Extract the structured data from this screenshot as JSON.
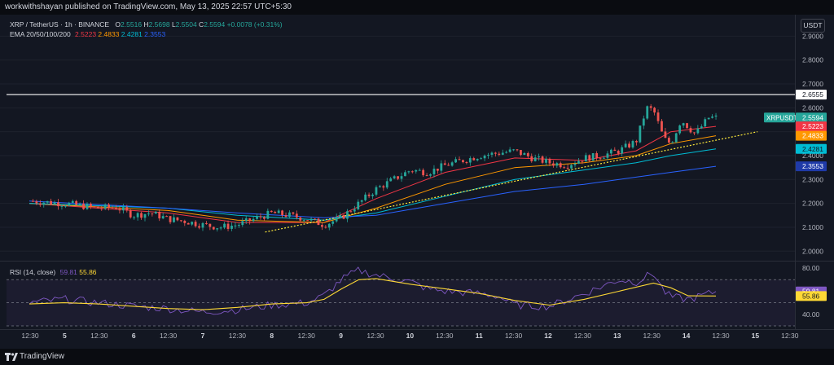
{
  "header": {
    "publish_text": "workwithshayan published on TradingView.com, May 13, 2025 22:57 UTC+5:30"
  },
  "legend": {
    "symbol": "XRP / TetherUS · 1h · BINANCE",
    "ohlc": [
      {
        "k": "O",
        "v": "2.5516"
      },
      {
        "k": "H",
        "v": "2.5698"
      },
      {
        "k": "L",
        "v": "2.5504"
      },
      {
        "k": "C",
        "v": "2.5594"
      }
    ],
    "change": "+0.0078 (+0.31%)",
    "ema_title": "EMA 20/50/100/200",
    "ema_values": [
      "2.5223",
      "2.4833",
      "2.4281",
      "2.3553"
    ],
    "rsi_title": "RSI (14, close)",
    "rsi_values": [
      "59.81",
      "55.86"
    ]
  },
  "currency_button": "USDT",
  "footer": {
    "brand": "TradingView"
  },
  "colors": {
    "background": "#131722",
    "up": "#26a69a",
    "down": "#ef5350",
    "ema20": "#f23645",
    "ema50": "#ff9800",
    "ema100": "#00bcd4",
    "ema200": "#2962ff",
    "rsi": "#7e57c2",
    "rsi_ma": "#fdd835",
    "horizontal_line": "#ffffff",
    "trendline": "#ffeb3b"
  },
  "chart_data": [
    {
      "type": "candlestick",
      "title": "XRP / TetherUS · 1h · BINANCE",
      "y_ticks": [
        "2.9000",
        "2.8000",
        "2.7000",
        "2.6000",
        "2.5000",
        "2.4000",
        "2.3000",
        "2.2000",
        "2.1000",
        "2.0000"
      ],
      "ylim": [
        1.96,
        2.99
      ],
      "x_ticks": [
        "12:30",
        "5",
        "12:30",
        "6",
        "12:30",
        "7",
        "12:30",
        "8",
        "12:30",
        "9",
        "12:30",
        "10",
        "12:30",
        "11",
        "12:30",
        "12",
        "12:30",
        "13",
        "12:30",
        "14",
        "12:30",
        "15",
        "12:30"
      ],
      "xlim": [
        0,
        22.5
      ],
      "close_series": [
        [
          0,
          2.21
        ],
        [
          0.5,
          2.205
        ],
        [
          1,
          2.2
        ],
        [
          1.5,
          2.19
        ],
        [
          2,
          2.18
        ],
        [
          2.5,
          2.185
        ],
        [
          3,
          2.15
        ],
        [
          3.5,
          2.16
        ],
        [
          4,
          2.135
        ],
        [
          4.5,
          2.125
        ],
        [
          5,
          2.11
        ],
        [
          5.5,
          2.1
        ],
        [
          6,
          2.11
        ],
        [
          6.5,
          2.135
        ],
        [
          7,
          2.16
        ],
        [
          7.5,
          2.15
        ],
        [
          8,
          2.135
        ],
        [
          8.5,
          2.11
        ],
        [
          9,
          2.14
        ],
        [
          9.5,
          2.2
        ],
        [
          10,
          2.26
        ],
        [
          10.5,
          2.3
        ],
        [
          11,
          2.34
        ],
        [
          11.5,
          2.33
        ],
        [
          12,
          2.36
        ],
        [
          12.5,
          2.38
        ],
        [
          13,
          2.4
        ],
        [
          13.5,
          2.41
        ],
        [
          14,
          2.42
        ],
        [
          14.5,
          2.39
        ],
        [
          15,
          2.37
        ],
        [
          15.5,
          2.36
        ],
        [
          16,
          2.39
        ],
        [
          16.5,
          2.4
        ],
        [
          17,
          2.42
        ],
        [
          17.5,
          2.46
        ],
        [
          17.8,
          2.6
        ],
        [
          18,
          2.59
        ],
        [
          18.3,
          2.47
        ],
        [
          18.5,
          2.45
        ],
        [
          18.8,
          2.55
        ],
        [
          19.2,
          2.49
        ],
        [
          19.6,
          2.56
        ],
        [
          19.8,
          2.559
        ]
      ],
      "current_price": "2.5594",
      "current_price_label": "XRPUSDT",
      "horizontal_level": "2.6555",
      "ema_labels": [
        "2.5223",
        "2.4833",
        "2.4281",
        "2.3553"
      ],
      "ema_series": [
        {
          "name": "EMA 20",
          "points": [
            [
              0,
              2.2
            ],
            [
              4,
              2.16
            ],
            [
              6,
              2.12
            ],
            [
              8.5,
              2.12
            ],
            [
              10,
              2.22
            ],
            [
              12,
              2.33
            ],
            [
              14,
              2.39
            ],
            [
              16,
              2.38
            ],
            [
              17.5,
              2.42
            ],
            [
              18.5,
              2.5
            ],
            [
              19.8,
              2.5223
            ]
          ]
        },
        {
          "name": "EMA 50",
          "points": [
            [
              0,
              2.2
            ],
            [
              4,
              2.17
            ],
            [
              6,
              2.13
            ],
            [
              8.5,
              2.12
            ],
            [
              10,
              2.18
            ],
            [
              12,
              2.28
            ],
            [
              14,
              2.35
            ],
            [
              16,
              2.37
            ],
            [
              17.5,
              2.4
            ],
            [
              18.5,
              2.45
            ],
            [
              19.8,
              2.4833
            ]
          ]
        },
        {
          "name": "EMA 100",
          "points": [
            [
              0,
              2.2
            ],
            [
              4,
              2.18
            ],
            [
              6,
              2.15
            ],
            [
              8.5,
              2.13
            ],
            [
              10,
              2.16
            ],
            [
              12,
              2.23
            ],
            [
              14,
              2.3
            ],
            [
              16,
              2.34
            ],
            [
              17.5,
              2.37
            ],
            [
              18.5,
              2.4
            ],
            [
              19.8,
              2.4281
            ]
          ]
        },
        {
          "name": "EMA 200",
          "points": [
            [
              0,
              2.21
            ],
            [
              4,
              2.18
            ],
            [
              6,
              2.16
            ],
            [
              8.5,
              2.14
            ],
            [
              10,
              2.15
            ],
            [
              12,
              2.2
            ],
            [
              14,
              2.25
            ],
            [
              16,
              2.28
            ],
            [
              17.5,
              2.31
            ],
            [
              18.5,
              2.33
            ],
            [
              19.8,
              2.3553
            ]
          ]
        }
      ],
      "trendline": [
        [
          6.8,
          2.08
        ],
        [
          21,
          2.5
        ]
      ]
    },
    {
      "type": "line",
      "title": "RSI (14, close)",
      "y_ticks": [
        "80.00",
        "40.00"
      ],
      "ylim": [
        30,
        85
      ],
      "bands": [
        70,
        50,
        30
      ],
      "series": [
        {
          "name": "RSI",
          "points": [
            [
              0,
              50
            ],
            [
              1,
              53
            ],
            [
              2,
              50
            ],
            [
              3,
              47
            ],
            [
              4,
              45
            ],
            [
              5,
              42
            ],
            [
              6,
              44
            ],
            [
              7,
              48
            ],
            [
              8,
              50
            ],
            [
              8.5,
              56
            ],
            [
              9,
              70
            ],
            [
              9.5,
              78
            ],
            [
              10,
              74
            ],
            [
              11,
              68
            ],
            [
              11.5,
              62
            ],
            [
              12,
              60
            ],
            [
              13,
              58
            ],
            [
              13.5,
              56
            ],
            [
              14,
              48
            ],
            [
              15,
              47
            ],
            [
              16,
              58
            ],
            [
              17,
              70
            ],
            [
              17.5,
              68
            ],
            [
              18,
              76
            ],
            [
              18.3,
              60
            ],
            [
              18.5,
              55
            ],
            [
              19,
              53
            ],
            [
              19.5,
              57
            ],
            [
              19.8,
              59.81
            ]
          ]
        },
        {
          "name": "RSI MA",
          "points": [
            [
              0,
              49
            ],
            [
              1,
              50
            ],
            [
              2,
              49
            ],
            [
              3,
              47
            ],
            [
              4,
              45
            ],
            [
              5,
              44
            ],
            [
              6,
              46
            ],
            [
              7,
              49
            ],
            [
              8,
              50
            ],
            [
              8.5,
              53
            ],
            [
              9,
              62
            ],
            [
              9.5,
              70
            ],
            [
              10,
              71
            ],
            [
              11,
              66
            ],
            [
              12,
              62
            ],
            [
              13,
              58
            ],
            [
              14,
              52
            ],
            [
              15,
              48
            ],
            [
              16,
              53
            ],
            [
              17,
              60
            ],
            [
              18,
              67
            ],
            [
              18.5,
              63
            ],
            [
              19,
              56
            ],
            [
              19.8,
              55.86
            ]
          ]
        }
      ]
    }
  ]
}
